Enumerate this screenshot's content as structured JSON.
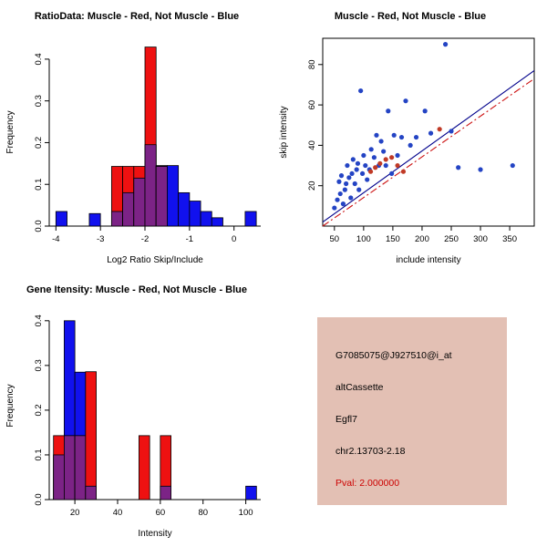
{
  "palette": {
    "blue": "#1111ee",
    "red": "#ee1111",
    "purple": "#7c2386",
    "point_blue": "#2444c4",
    "point_red": "#c03a26",
    "line_blue": "#00008b",
    "line_red": "#cc1111"
  },
  "chart_data": [
    {
      "type": "histogram",
      "title": "RatioData: Muscle - Red, Not Muscle - Blue",
      "xlabel": "Log2 Ratio Skip/Include",
      "ylabel": "Frequency",
      "xlim": [
        -4.15,
        0.6
      ],
      "ylim": [
        0,
        0.45
      ],
      "xticks": [
        {
          "v": -4,
          "label": "-4"
        },
        {
          "v": -3,
          "label": "-3"
        },
        {
          "v": -2,
          "label": "-2"
        },
        {
          "v": -1,
          "label": "-1"
        },
        {
          "v": 0,
          "label": "0"
        }
      ],
      "yticks": [
        {
          "v": 0,
          "label": "0.0"
        },
        {
          "v": 0.1,
          "label": "0.1"
        },
        {
          "v": 0.2,
          "label": "0.2"
        },
        {
          "v": 0.3,
          "label": "0.3"
        },
        {
          "v": 0.4,
          "label": "0.4"
        }
      ],
      "bin_width": 0.25,
      "overlap_color": "purple",
      "series": [
        {
          "name": "Not Muscle",
          "color": "blue",
          "bins": [
            {
              "x": -4.0,
              "f": 0.035
            },
            {
              "x": -3.25,
              "f": 0.03
            },
            {
              "x": -2.75,
              "f": 0.035
            },
            {
              "x": -2.5,
              "f": 0.08
            },
            {
              "x": -2.25,
              "f": 0.115
            },
            {
              "x": -2.0,
              "f": 0.195
            },
            {
              "x": -1.75,
              "f": 0.145
            },
            {
              "x": -1.5,
              "f": 0.145
            },
            {
              "x": -1.25,
              "f": 0.08
            },
            {
              "x": -1.0,
              "f": 0.06
            },
            {
              "x": -0.75,
              "f": 0.035
            },
            {
              "x": -0.5,
              "f": 0.02
            },
            {
              "x": 0.25,
              "f": 0.035
            }
          ]
        },
        {
          "name": "Muscle",
          "color": "red",
          "bins": [
            {
              "x": -2.75,
              "f": 0.143
            },
            {
              "x": -2.5,
              "f": 0.143
            },
            {
              "x": -2.25,
              "f": 0.143
            },
            {
              "x": -2.0,
              "f": 0.429
            },
            {
              "x": -1.75,
              "f": 0.143
            }
          ]
        }
      ]
    },
    {
      "type": "scatter",
      "title": "Muscle - Red, Not Muscle - Blue",
      "xlabel": "include intensity",
      "ylabel": "skip intensity",
      "xlim": [
        30,
        392
      ],
      "ylim": [
        0,
        93
      ],
      "xticks": [
        {
          "v": 50,
          "label": "50"
        },
        {
          "v": 100,
          "label": "100"
        },
        {
          "v": 150,
          "label": "150"
        },
        {
          "v": 200,
          "label": "200"
        },
        {
          "v": 250,
          "label": "250"
        },
        {
          "v": 300,
          "label": "300"
        },
        {
          "v": 350,
          "label": "350"
        }
      ],
      "yticks": [
        {
          "v": 20,
          "label": "20"
        },
        {
          "v": 40,
          "label": "40"
        },
        {
          "v": 60,
          "label": "60"
        },
        {
          "v": 80,
          "label": "80"
        }
      ],
      "lines": [
        {
          "name": "not-muscle-fit",
          "color": "line_blue",
          "style": "solid",
          "from": [
            30,
            2
          ],
          "to": [
            392,
            77
          ]
        },
        {
          "name": "muscle-fit",
          "color": "line_red",
          "style": "dashdot",
          "from": [
            30,
            0
          ],
          "to": [
            392,
            73
          ]
        }
      ],
      "series": [
        {
          "name": "Not Muscle",
          "color": "point_blue",
          "points": [
            [
              50,
              9
            ],
            [
              55,
              13
            ],
            [
              58,
              22
            ],
            [
              60,
              16
            ],
            [
              62,
              25
            ],
            [
              65,
              11
            ],
            [
              68,
              18
            ],
            [
              70,
              21
            ],
            [
              72,
              30
            ],
            [
              75,
              24
            ],
            [
              78,
              14
            ],
            [
              80,
              26
            ],
            [
              82,
              33
            ],
            [
              85,
              21
            ],
            [
              88,
              28
            ],
            [
              90,
              31
            ],
            [
              92,
              18
            ],
            [
              95,
              67
            ],
            [
              98,
              26
            ],
            [
              100,
              35
            ],
            [
              103,
              30
            ],
            [
              106,
              23
            ],
            [
              110,
              28
            ],
            [
              113,
              38
            ],
            [
              118,
              34
            ],
            [
              122,
              45
            ],
            [
              126,
              30
            ],
            [
              130,
              42
            ],
            [
              134,
              37
            ],
            [
              138,
              30
            ],
            [
              142,
              57
            ],
            [
              148,
              26
            ],
            [
              152,
              45
            ],
            [
              158,
              35
            ],
            [
              165,
              44
            ],
            [
              172,
              62
            ],
            [
              180,
              40
            ],
            [
              190,
              44
            ],
            [
              205,
              57
            ],
            [
              215,
              46
            ],
            [
              240,
              90
            ],
            [
              250,
              47
            ],
            [
              262,
              29
            ],
            [
              300,
              28
            ],
            [
              355,
              30
            ]
          ]
        },
        {
          "name": "Muscle",
          "color": "point_red",
          "points": [
            [
              112,
              27
            ],
            [
              120,
              29
            ],
            [
              128,
              31
            ],
            [
              138,
              33
            ],
            [
              148,
              34
            ],
            [
              158,
              30
            ],
            [
              168,
              27
            ],
            [
              230,
              48
            ]
          ]
        }
      ]
    },
    {
      "type": "histogram",
      "title": "Gene Itensity: Muscle - Red, Not Muscle - Blue",
      "xlabel": "Intensity",
      "ylabel": "Frequency",
      "xlim": [
        8,
        107
      ],
      "ylim": [
        0,
        0.42
      ],
      "xticks": [
        {
          "v": 20,
          "label": "20"
        },
        {
          "v": 40,
          "label": "40"
        },
        {
          "v": 60,
          "label": "60"
        },
        {
          "v": 80,
          "label": "80"
        },
        {
          "v": 100,
          "label": "100"
        }
      ],
      "yticks": [
        {
          "v": 0,
          "label": "0.0"
        },
        {
          "v": 0.1,
          "label": "0.1"
        },
        {
          "v": 0.2,
          "label": "0.2"
        },
        {
          "v": 0.3,
          "label": "0.3"
        },
        {
          "v": 0.4,
          "label": "0.4"
        }
      ],
      "bin_width": 5,
      "overlap_color": "purple",
      "series": [
        {
          "name": "Not Muscle",
          "color": "blue",
          "bins": [
            {
              "x": 10,
              "f": 0.1
            },
            {
              "x": 15,
              "f": 0.4
            },
            {
              "x": 20,
              "f": 0.285
            },
            {
              "x": 25,
              "f": 0.03
            },
            {
              "x": 60,
              "f": 0.03
            },
            {
              "x": 100,
              "f": 0.03
            }
          ]
        },
        {
          "name": "Muscle",
          "color": "red",
          "bins": [
            {
              "x": 10,
              "f": 0.143
            },
            {
              "x": 15,
              "f": 0.143
            },
            {
              "x": 20,
              "f": 0.143
            },
            {
              "x": 25,
              "f": 0.286
            },
            {
              "x": 50,
              "f": 0.143
            },
            {
              "x": 60,
              "f": 0.143
            }
          ]
        }
      ]
    }
  ],
  "info_box": {
    "background": "#e3c0b4",
    "probe_id": "G7085075@J927510@i_at",
    "event_type": "altCassette",
    "gene": "Egfl7",
    "location": "chr2.13703-2.18",
    "pval": "Pval: 2.000000",
    "pval_color": "#cc0000"
  }
}
